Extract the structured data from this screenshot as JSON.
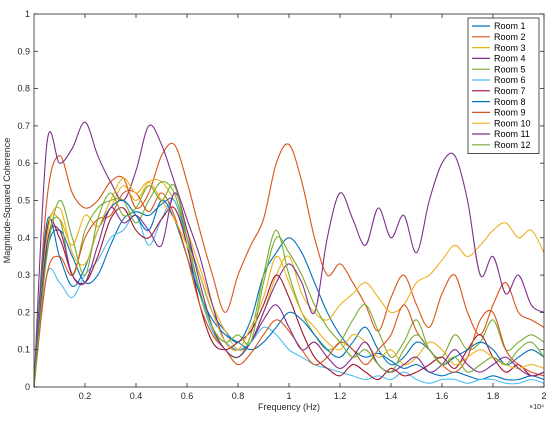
{
  "chart_data": {
    "type": "line",
    "title": "",
    "xlabel": "Frequency (Hz)",
    "ylabel": "Magnitude-Squared Coherence",
    "x_exponent_label": "×10⁴",
    "xlim": [
      0,
      2
    ],
    "ylim": [
      0,
      1
    ],
    "x_ticks": [
      0.2,
      0.4,
      0.6,
      0.8,
      1,
      1.2,
      1.4,
      1.6,
      1.8,
      2
    ],
    "x_tick_labels": [
      "0.2",
      "0.4",
      "0.6",
      "0.8",
      "1",
      "1.2",
      "1.4",
      "1.6",
      "1.8",
      "2"
    ],
    "y_ticks": [
      0,
      0.1,
      0.2,
      0.3,
      0.4,
      0.5,
      0.6,
      0.7,
      0.8,
      0.9,
      1
    ],
    "y_tick_labels": [
      "0",
      "0.1",
      "0.2",
      "0.3",
      "0.4",
      "0.5",
      "0.6",
      "0.7",
      "0.8",
      "0.9",
      "1"
    ],
    "grid": false,
    "legend_position": "top-right",
    "x": [
      0,
      0.05,
      0.1,
      0.15,
      0.2,
      0.25,
      0.3,
      0.35,
      0.4,
      0.45,
      0.5,
      0.55,
      0.6,
      0.65,
      0.7,
      0.75,
      0.8,
      0.85,
      0.9,
      0.95,
      1.0,
      1.05,
      1.1,
      1.15,
      1.2,
      1.25,
      1.3,
      1.35,
      1.4,
      1.45,
      1.5,
      1.55,
      1.6,
      1.65,
      1.7,
      1.75,
      1.8,
      1.85,
      1.9,
      1.95,
      2.0
    ],
    "series": [
      {
        "name": "Room 1",
        "color": "#0072BD",
        "values": [
          0.02,
          0.36,
          0.42,
          0.35,
          0.28,
          0.3,
          0.38,
          0.45,
          0.47,
          0.46,
          0.49,
          0.5,
          0.4,
          0.3,
          0.2,
          0.15,
          0.12,
          0.18,
          0.3,
          0.36,
          0.4,
          0.36,
          0.28,
          0.2,
          0.14,
          0.1,
          0.08,
          0.09,
          0.07,
          0.05,
          0.06,
          0.04,
          0.03,
          0.04,
          0.03,
          0.02,
          0.03,
          0.02,
          0.02,
          0.03,
          0.02
        ]
      },
      {
        "name": "Room 2",
        "color": "#D95319",
        "values": [
          0.0,
          0.5,
          0.62,
          0.52,
          0.48,
          0.5,
          0.55,
          0.56,
          0.48,
          0.52,
          0.62,
          0.65,
          0.55,
          0.42,
          0.3,
          0.2,
          0.3,
          0.38,
          0.45,
          0.6,
          0.65,
          0.55,
          0.4,
          0.3,
          0.33,
          0.28,
          0.22,
          0.15,
          0.24,
          0.3,
          0.22,
          0.16,
          0.25,
          0.3,
          0.2,
          0.14,
          0.22,
          0.28,
          0.2,
          0.18,
          0.16
        ]
      },
      {
        "name": "Room 3",
        "color": "#EDB120",
        "values": [
          0.0,
          0.42,
          0.45,
          0.38,
          0.46,
          0.43,
          0.48,
          0.54,
          0.5,
          0.55,
          0.55,
          0.5,
          0.42,
          0.32,
          0.22,
          0.15,
          0.1,
          0.12,
          0.2,
          0.3,
          0.35,
          0.25,
          0.2,
          0.18,
          0.22,
          0.25,
          0.28,
          0.24,
          0.2,
          0.22,
          0.28,
          0.3,
          0.34,
          0.38,
          0.35,
          0.38,
          0.42,
          0.44,
          0.4,
          0.42,
          0.36
        ]
      },
      {
        "name": "Room 4",
        "color": "#7E2F8E",
        "values": [
          0.0,
          0.65,
          0.6,
          0.64,
          0.71,
          0.62,
          0.55,
          0.5,
          0.58,
          0.7,
          0.65,
          0.55,
          0.45,
          0.35,
          0.22,
          0.12,
          0.1,
          0.12,
          0.2,
          0.28,
          0.33,
          0.28,
          0.2,
          0.4,
          0.52,
          0.45,
          0.38,
          0.48,
          0.4,
          0.46,
          0.36,
          0.5,
          0.6,
          0.62,
          0.5,
          0.3,
          0.35,
          0.25,
          0.3,
          0.22,
          0.2
        ]
      },
      {
        "name": "Room 5",
        "color": "#77AC30",
        "values": [
          0.0,
          0.38,
          0.45,
          0.3,
          0.42,
          0.48,
          0.5,
          0.5,
          0.44,
          0.5,
          0.55,
          0.52,
          0.4,
          0.25,
          0.15,
          0.1,
          0.08,
          0.14,
          0.3,
          0.42,
          0.3,
          0.2,
          0.14,
          0.1,
          0.12,
          0.18,
          0.22,
          0.15,
          0.08,
          0.12,
          0.18,
          0.1,
          0.08,
          0.14,
          0.1,
          0.12,
          0.18,
          0.1,
          0.12,
          0.14,
          0.12
        ]
      },
      {
        "name": "Room 6",
        "color": "#4DBEEE",
        "values": [
          0.0,
          0.3,
          0.28,
          0.24,
          0.3,
          0.34,
          0.4,
          0.42,
          0.46,
          0.38,
          0.45,
          0.5,
          0.38,
          0.25,
          0.15,
          0.12,
          0.1,
          0.12,
          0.16,
          0.14,
          0.1,
          0.08,
          0.06,
          0.05,
          0.04,
          0.03,
          0.02,
          0.03,
          0.02,
          0.04,
          0.02,
          0.01,
          0.02,
          0.02,
          0.01,
          0.02,
          0.02,
          0.01,
          0.01,
          0.02,
          0.01
        ]
      },
      {
        "name": "Room 7",
        "color": "#A2142F",
        "values": [
          0.0,
          0.42,
          0.4,
          0.3,
          0.28,
          0.35,
          0.45,
          0.48,
          0.42,
          0.4,
          0.45,
          0.48,
          0.38,
          0.22,
          0.12,
          0.1,
          0.12,
          0.15,
          0.22,
          0.3,
          0.24,
          0.15,
          0.08,
          0.05,
          0.03,
          0.06,
          0.04,
          0.02,
          0.05,
          0.03,
          0.04,
          0.06,
          0.08,
          0.05,
          0.1,
          0.14,
          0.08,
          0.04,
          0.06,
          0.03,
          0.04
        ]
      },
      {
        "name": "Room 8",
        "color": "#0072BD",
        "values": [
          0.0,
          0.44,
          0.35,
          0.27,
          0.32,
          0.42,
          0.48,
          0.5,
          0.46,
          0.42,
          0.5,
          0.45,
          0.35,
          0.25,
          0.18,
          0.14,
          0.12,
          0.1,
          0.12,
          0.16,
          0.2,
          0.18,
          0.14,
          0.1,
          0.08,
          0.12,
          0.16,
          0.1,
          0.06,
          0.08,
          0.12,
          0.1,
          0.06,
          0.08,
          0.1,
          0.12,
          0.1,
          0.06,
          0.08,
          0.1,
          0.08
        ]
      },
      {
        "name": "Room 9",
        "color": "#D95319",
        "values": [
          0.0,
          0.3,
          0.35,
          0.3,
          0.4,
          0.45,
          0.46,
          0.52,
          0.52,
          0.47,
          0.52,
          0.46,
          0.35,
          0.22,
          0.14,
          0.1,
          0.06,
          0.09,
          0.14,
          0.18,
          0.15,
          0.1,
          0.06,
          0.08,
          0.12,
          0.1,
          0.06,
          0.1,
          0.14,
          0.22,
          0.15,
          0.1,
          0.06,
          0.04,
          0.08,
          0.18,
          0.2,
          0.1,
          0.06,
          0.04,
          0.03
        ]
      },
      {
        "name": "Room 10",
        "color": "#EDB120",
        "values": [
          0.0,
          0.4,
          0.48,
          0.36,
          0.33,
          0.42,
          0.5,
          0.56,
          0.52,
          0.55,
          0.5,
          0.45,
          0.38,
          0.3,
          0.2,
          0.12,
          0.1,
          0.16,
          0.24,
          0.35,
          0.28,
          0.2,
          0.16,
          0.12,
          0.1,
          0.14,
          0.12,
          0.08,
          0.1,
          0.06,
          0.08,
          0.12,
          0.1,
          0.06,
          0.08,
          0.1,
          0.08,
          0.06,
          0.05,
          0.06,
          0.05
        ]
      },
      {
        "name": "Room 11",
        "color": "#7E2F8E",
        "values": [
          0.0,
          0.38,
          0.42,
          0.3,
          0.28,
          0.38,
          0.48,
          0.44,
          0.46,
          0.42,
          0.38,
          0.52,
          0.42,
          0.28,
          0.16,
          0.1,
          0.08,
          0.12,
          0.18,
          0.22,
          0.16,
          0.1,
          0.12,
          0.08,
          0.05,
          0.08,
          0.12,
          0.06,
          0.04,
          0.06,
          0.08,
          0.04,
          0.06,
          0.1,
          0.06,
          0.04,
          0.06,
          0.08,
          0.05,
          0.03,
          0.04
        ]
      },
      {
        "name": "Room 12",
        "color": "#77AC30",
        "values": [
          0.0,
          0.35,
          0.5,
          0.4,
          0.3,
          0.45,
          0.52,
          0.46,
          0.48,
          0.54,
          0.5,
          0.54,
          0.4,
          0.26,
          0.16,
          0.12,
          0.14,
          0.12,
          0.28,
          0.4,
          0.36,
          0.3,
          0.22,
          0.16,
          0.12,
          0.08,
          0.1,
          0.06,
          0.04,
          0.1,
          0.14,
          0.1,
          0.06,
          0.08,
          0.04,
          0.06,
          0.08,
          0.06,
          0.1,
          0.12,
          0.08
        ]
      }
    ]
  }
}
